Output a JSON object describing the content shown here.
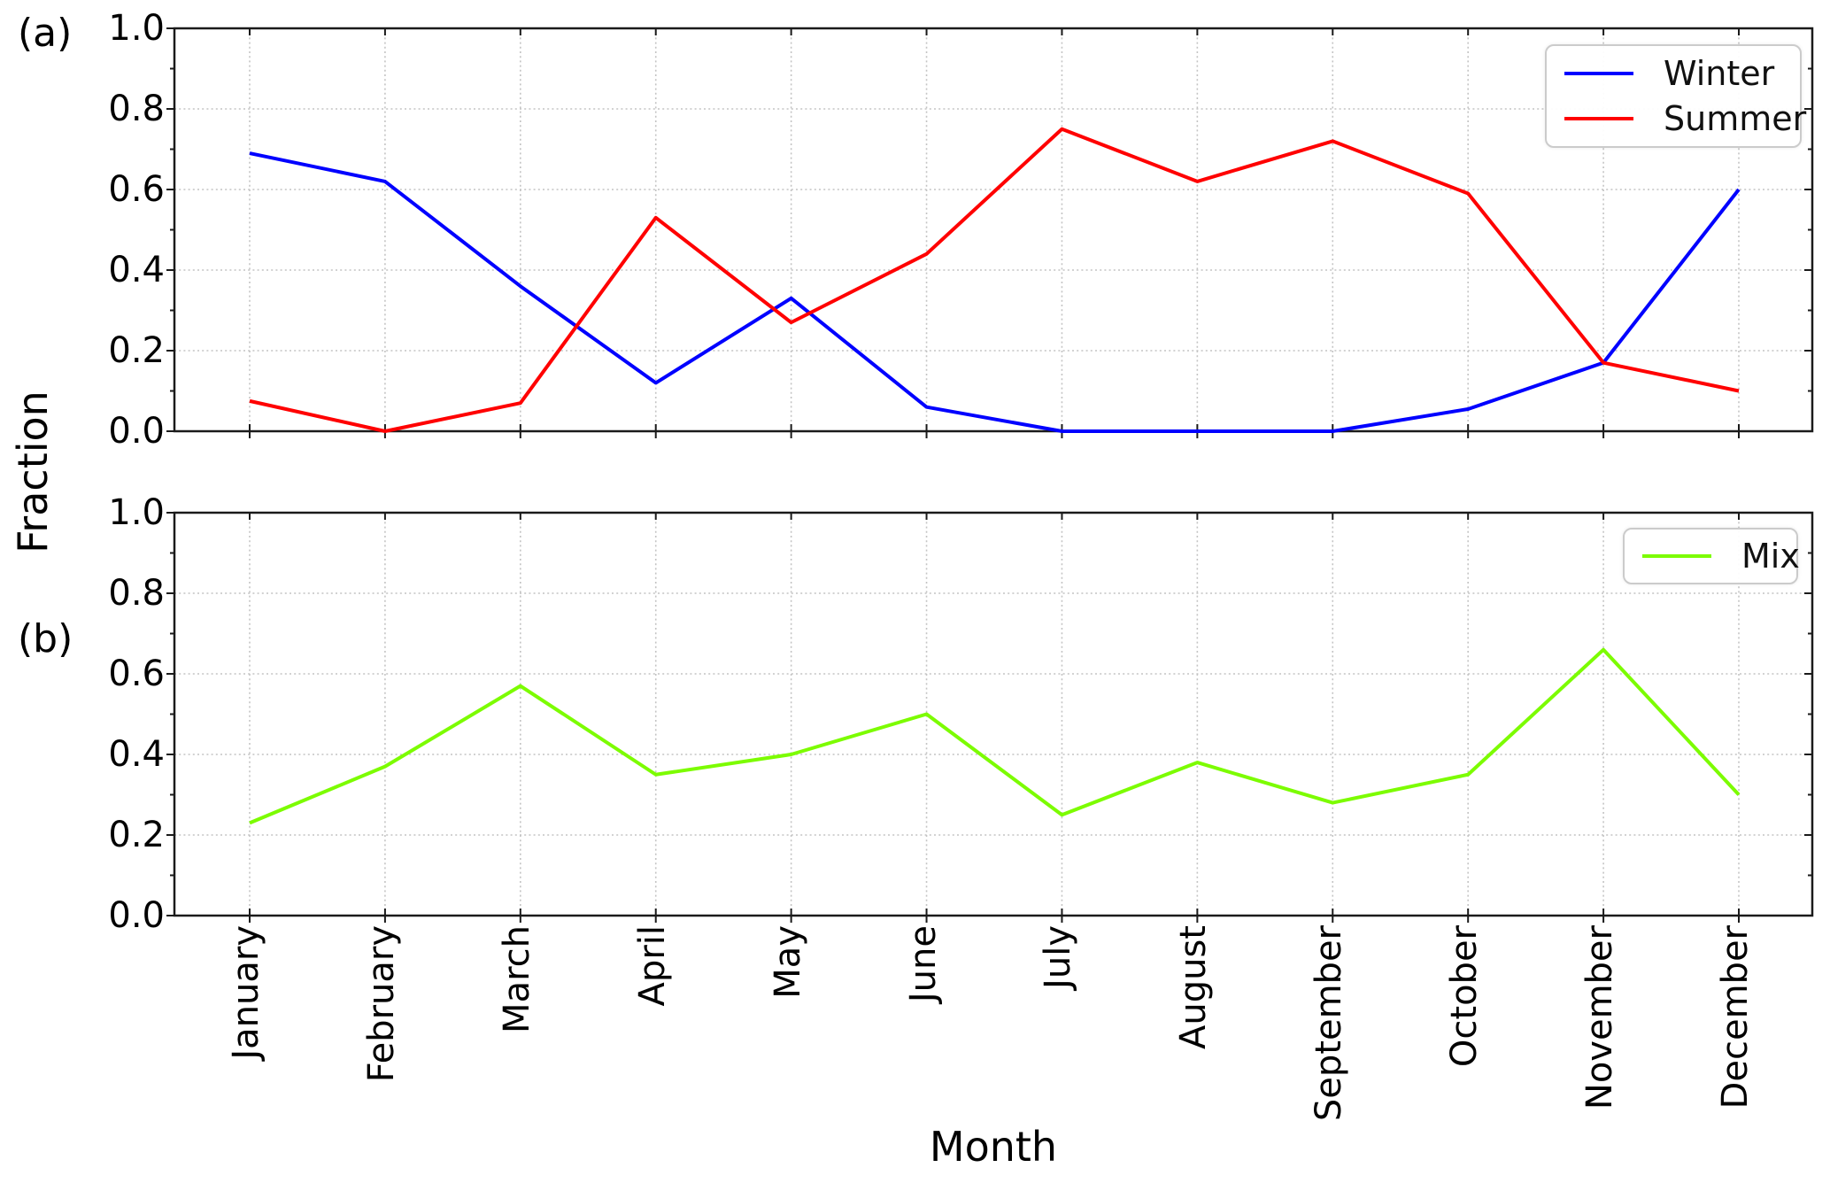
{
  "figure": {
    "panel_a_tag": "(a)",
    "panel_b_tag": "(b)",
    "xlabel": "Month",
    "ylabel": "Fraction",
    "background_color": "#ffffff",
    "frame_color": "#1a1a1a",
    "grid_color": "#c4c4c4",
    "tick_label_format": [
      "0.0",
      "0.2",
      "0.4",
      "0.6",
      "0.8",
      "1.0"
    ]
  },
  "chart_data": [
    {
      "type": "line",
      "panel": "(a)",
      "categories": [
        "January",
        "February",
        "March",
        "April",
        "May",
        "June",
        "July",
        "August",
        "September",
        "October",
        "November",
        "December"
      ],
      "xlabel": "Month",
      "ylabel": "Fraction",
      "ylim": [
        0.0,
        1.0
      ],
      "yticks": [
        0.0,
        0.2,
        0.4,
        0.6,
        0.8,
        1.0
      ],
      "grid": "dotted",
      "legend_position": "upper right",
      "series": [
        {
          "name": "Winter",
          "color": "#0000ff",
          "values": [
            0.69,
            0.62,
            0.36,
            0.12,
            0.33,
            0.06,
            0.0,
            0.0,
            0.0,
            0.055,
            0.17,
            0.6
          ]
        },
        {
          "name": "Summer",
          "color": "#ff0000",
          "values": [
            0.075,
            0.0,
            0.07,
            0.53,
            0.27,
            0.44,
            0.75,
            0.62,
            0.72,
            0.59,
            0.17,
            0.1
          ]
        }
      ]
    },
    {
      "type": "line",
      "panel": "(b)",
      "categories": [
        "January",
        "February",
        "March",
        "April",
        "May",
        "June",
        "July",
        "August",
        "September",
        "October",
        "November",
        "December"
      ],
      "xlabel": "Month",
      "ylabel": "Fraction",
      "ylim": [
        0.0,
        1.0
      ],
      "yticks": [
        0.0,
        0.2,
        0.4,
        0.6,
        0.8,
        1.0
      ],
      "grid": "dotted",
      "legend_position": "upper right",
      "series": [
        {
          "name": "Mix",
          "color": "#7cfc00",
          "values": [
            0.23,
            0.37,
            0.57,
            0.35,
            0.4,
            0.5,
            0.25,
            0.38,
            0.28,
            0.35,
            0.66,
            0.3
          ]
        }
      ]
    }
  ]
}
